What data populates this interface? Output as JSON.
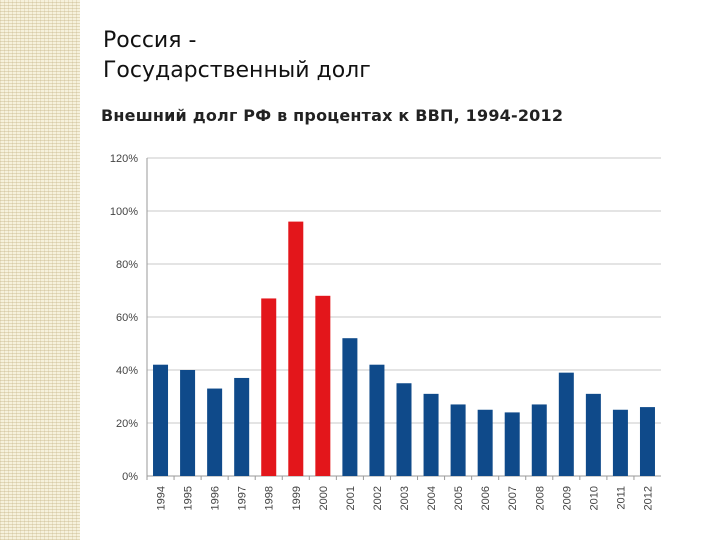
{
  "slide": {
    "title_line1": "Россия -",
    "title_line2": "Государственный долг"
  },
  "chart_data": {
    "type": "bar",
    "title": "Внешний долг РФ в процентах к ВВП, 1994-2012",
    "xlabel": "",
    "ylabel": "",
    "ylim": [
      0,
      120
    ],
    "y_ticks": [
      "0%",
      "20%",
      "40%",
      "60%",
      "80%",
      "100%",
      "120%"
    ],
    "y_tick_values": [
      0,
      20,
      40,
      60,
      80,
      100,
      120
    ],
    "grid": true,
    "categories": [
      "1994",
      "1995",
      "1996",
      "1997",
      "1998",
      "1999",
      "2000",
      "2001",
      "2002",
      "2003",
      "2004",
      "2005",
      "2006",
      "2007",
      "2008",
      "2009",
      "2010",
      "2011",
      "2012"
    ],
    "values": [
      42,
      40,
      33,
      37,
      67,
      96,
      68,
      52,
      42,
      35,
      31,
      27,
      25,
      24,
      27,
      39,
      31,
      25,
      26
    ],
    "colors": {
      "default": "#0f4a8a",
      "highlight": "#e3161b"
    },
    "highlighted_categories": [
      "1998",
      "1999",
      "2000"
    ]
  }
}
